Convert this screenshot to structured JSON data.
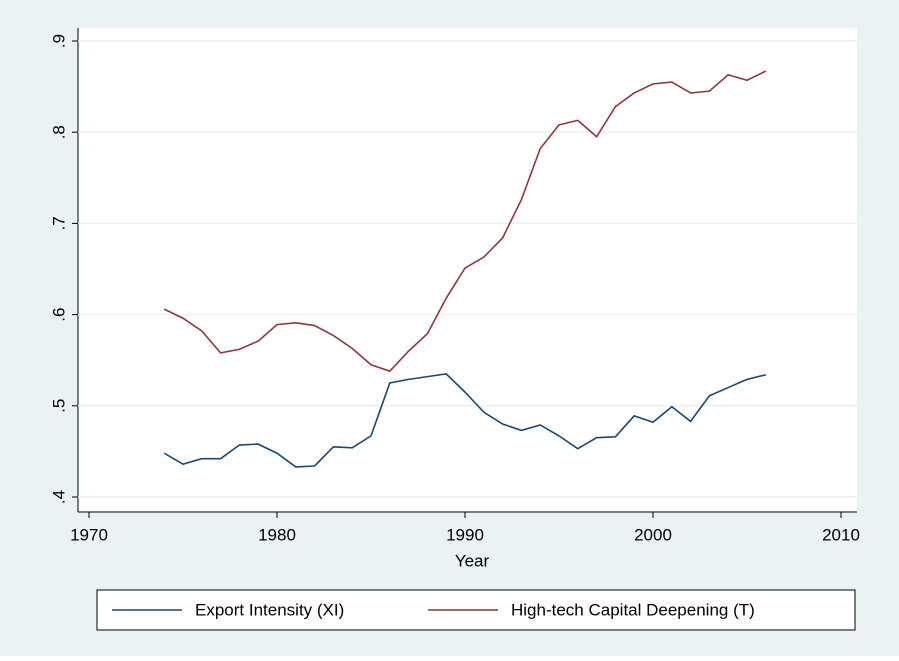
{
  "chart_data": {
    "type": "line",
    "xlabel": "Year",
    "x": [
      1974,
      1975,
      1976,
      1977,
      1978,
      1979,
      1980,
      1981,
      1982,
      1983,
      1984,
      1985,
      1986,
      1987,
      1988,
      1989,
      1990,
      1991,
      1992,
      1993,
      1994,
      1995,
      1996,
      1997,
      1998,
      1999,
      2000,
      2001,
      2002,
      2003,
      2004,
      2005,
      2006
    ],
    "series": [
      {
        "name": "Export Intensity (XI)",
        "color": "#1a476f",
        "values": [
          0.448,
          0.436,
          0.442,
          0.442,
          0.457,
          0.458,
          0.448,
          0.433,
          0.434,
          0.455,
          0.454,
          0.467,
          0.525,
          0.529,
          0.532,
          0.535,
          0.515,
          0.493,
          0.48,
          0.473,
          0.479,
          0.467,
          0.453,
          0.465,
          0.466,
          0.489,
          0.482,
          0.499,
          0.483,
          0.511,
          0.52,
          0.529,
          0.534
        ]
      },
      {
        "name": "High-tech Capital Deepening (T)",
        "color": "#90353b",
        "values": [
          0.606,
          0.596,
          0.582,
          0.558,
          0.562,
          0.571,
          0.589,
          0.591,
          0.588,
          0.577,
          0.563,
          0.545,
          0.538,
          0.56,
          0.579,
          0.618,
          0.651,
          0.663,
          0.684,
          0.726,
          0.782,
          0.808,
          0.813,
          0.795,
          0.828,
          0.843,
          0.853,
          0.855,
          0.843,
          0.845,
          0.863,
          0.857,
          0.867
        ]
      }
    ],
    "xlim": [
      1970,
      2010
    ],
    "xticks": [
      1970,
      1980,
      1990,
      2000,
      2010
    ],
    "ylim": [
      0.4,
      0.9
    ],
    "yticks": [
      {
        "value": 0.4,
        "label": ".4"
      },
      {
        "value": 0.5,
        "label": ".5"
      },
      {
        "value": 0.6,
        "label": ".6"
      },
      {
        "value": 0.7,
        "label": ".7"
      },
      {
        "value": 0.8,
        "label": ".8"
      },
      {
        "value": 0.9,
        "label": ".9"
      }
    ],
    "grid": true
  }
}
